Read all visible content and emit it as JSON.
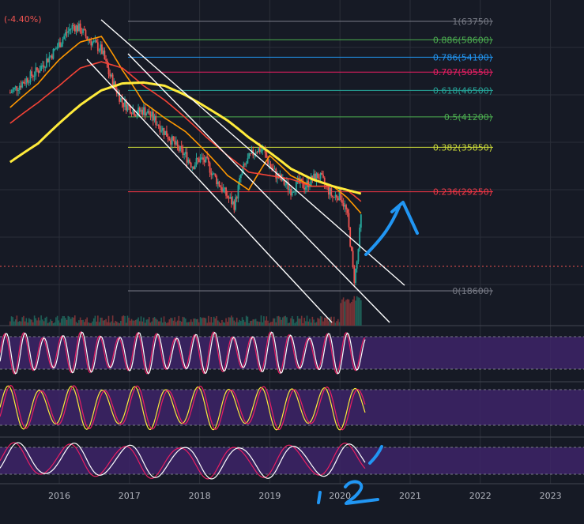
{
  "header": {
    "change_label": "(-4.40%)"
  },
  "chart_data": {
    "type": "line",
    "title": "",
    "instrument_change": "(-4.40%)",
    "x_axis": {
      "ticks": [
        "2016",
        "2017",
        "2018",
        "2019",
        "2020",
        "2021",
        "2022",
        "2023"
      ]
    },
    "y_axis": {
      "scale": "log",
      "range": [
        15000,
        70000
      ]
    },
    "grid": true,
    "fib_levels": [
      {
        "ratio": "1",
        "price": 63750,
        "label": "1(63750)",
        "color": "#787b86"
      },
      {
        "ratio": "0.886",
        "price": 58600,
        "label": "0.886(58600)",
        "color": "#4caf50"
      },
      {
        "ratio": "0.786",
        "price": 54100,
        "label": "0.786(54100)",
        "color": "#2196f3"
      },
      {
        "ratio": "0.707",
        "price": 50550,
        "label": "0.707(50550)",
        "color": "#e91e63"
      },
      {
        "ratio": "0.618",
        "price": 46500,
        "label": "0.618(46500)",
        "color": "#26a69a"
      },
      {
        "ratio": "0.5",
        "price": 41200,
        "label": "0.5(41200)",
        "color": "#4caf50"
      },
      {
        "ratio": "0.382",
        "price": 35850,
        "label": "0.382(35850)",
        "color": "#cddc39"
      },
      {
        "ratio": "0.236",
        "price": 29250,
        "label": "0.236(29250)",
        "color": "#f23645"
      },
      {
        "ratio": "0",
        "price": 18600,
        "label": "0(18600)",
        "color": "#787b86"
      }
    ],
    "series": [
      {
        "kind": "price_close_weekly",
        "x": [
          2015.3,
          2015.5,
          2015.7,
          2015.9,
          2016.0,
          2016.1,
          2016.2,
          2016.3,
          2016.4,
          2016.5,
          2016.6,
          2016.7,
          2016.8,
          2016.9,
          2017.0,
          2017.1,
          2017.2,
          2017.3,
          2017.4,
          2017.5,
          2017.6,
          2017.7,
          2017.8,
          2017.9,
          2018.0,
          2018.1,
          2018.2,
          2018.3,
          2018.4,
          2018.5,
          2018.6,
          2018.7,
          2018.8,
          2018.9,
          2019.0,
          2019.1,
          2019.2,
          2019.3,
          2019.4,
          2019.5,
          2019.6,
          2019.7,
          2019.8,
          2019.9,
          2020.0,
          2020.1,
          2020.2,
          2020.25,
          2020.3
        ],
        "values": [
          46000,
          48500,
          51000,
          55000,
          57500,
          60500,
          62500,
          61500,
          59000,
          57500,
          56000,
          50500,
          47000,
          44000,
          43000,
          42000,
          42500,
          41500,
          40000,
          38500,
          37000,
          35500,
          34500,
          33000,
          34000,
          33500,
          31500,
          30000,
          28500,
          27500,
          32000,
          34000,
          35500,
          35500,
          33000,
          31500,
          30500,
          29500,
          30500,
          30000,
          31000,
          31500,
          30000,
          28500,
          29000,
          26500,
          19500,
          21500,
          26000
        ]
      },
      {
        "kind": "moving_average",
        "color": "#ff9800",
        "x": [
          2015.3,
          2015.7,
          2016.0,
          2016.3,
          2016.6,
          2016.9,
          2017.2,
          2017.5,
          2017.8,
          2018.1,
          2018.4,
          2018.7,
          2019.0,
          2019.3,
          2019.6,
          2019.9,
          2020.1,
          2020.3
        ],
        "values": [
          43000,
          48000,
          53500,
          58000,
          59500,
          51000,
          44000,
          41000,
          38500,
          35000,
          31500,
          29500,
          34500,
          31500,
          30000,
          30000,
          28500,
          26500
        ]
      },
      {
        "kind": "moving_average",
        "color": "#f44336",
        "x": [
          2015.3,
          2015.7,
          2016.0,
          2016.3,
          2016.6,
          2016.9,
          2017.2,
          2017.5,
          2017.8,
          2018.1,
          2018.4,
          2018.7,
          2019.0,
          2019.3,
          2019.6,
          2019.9,
          2020.1,
          2020.3
        ],
        "values": [
          40000,
          44000,
          47500,
          51500,
          53000,
          51500,
          47500,
          44500,
          41000,
          37500,
          34500,
          32000,
          31500,
          31000,
          30000,
          30000,
          29500,
          28000
        ]
      },
      {
        "kind": "moving_average",
        "color": "#ffeb3b",
        "x": [
          2015.3,
          2015.7,
          2016.0,
          2016.3,
          2016.6,
          2016.9,
          2017.2,
          2017.5,
          2017.8,
          2018.1,
          2018.4,
          2018.7,
          2019.0,
          2019.3,
          2019.6,
          2019.9,
          2020.1,
          2020.3
        ],
        "values": [
          33500,
          36500,
          40000,
          43500,
          46500,
          48000,
          48200,
          47500,
          45500,
          43000,
          40500,
          37500,
          35000,
          32500,
          31000,
          30000,
          29500,
          29000
        ]
      }
    ],
    "oscillators": [
      {
        "name": "",
        "line_colors": [
          "#e91e63",
          "#ffffff"
        ]
      },
      {
        "name": "",
        "line_colors": [
          "#ffeb3b",
          "#e91e63"
        ]
      },
      {
        "name": "",
        "line_colors": [
          "#e91e63",
          "#ffffff"
        ]
      }
    ],
    "annotations": [
      {
        "type": "hand-drawn-arrow",
        "color": "#2196f3"
      },
      {
        "type": "hand-drawn-digits",
        "text": "1 2",
        "color": "#2196f3"
      }
    ]
  },
  "colors": {
    "background": "#161a25",
    "grid": "#2a2e39",
    "candle_up": "#26a69a",
    "candle_down": "#ef5350",
    "oscillator_band": "#3d2468",
    "channel": "#ffffff",
    "handdrawn": "#2196f3"
  }
}
